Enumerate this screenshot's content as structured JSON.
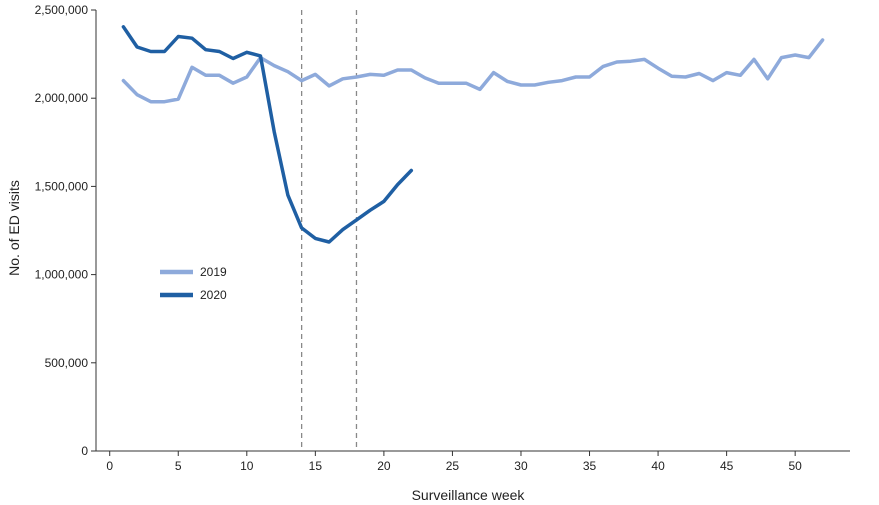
{
  "chart_data": {
    "type": "line",
    "xlabel": "Surveillance week",
    "ylabel": "No. of ED visits",
    "xlim": [
      -1,
      54
    ],
    "ylim": [
      0,
      2500000
    ],
    "x_ticks": [
      0,
      5,
      10,
      15,
      20,
      25,
      30,
      35,
      40,
      45,
      50
    ],
    "x_tick_labels": [
      "0",
      "5",
      "10",
      "15",
      "20",
      "25",
      "30",
      "35",
      "40",
      "45",
      "50"
    ],
    "y_ticks": [
      0,
      500000,
      1000000,
      1500000,
      2000000,
      2500000
    ],
    "y_tick_labels": [
      "0",
      "500,000",
      "1,000,000",
      "1,500,000",
      "2,000,000",
      "2,500,000"
    ],
    "reference_lines_x": [
      14,
      18
    ],
    "legend_position": "left-middle",
    "grid": false,
    "series": [
      {
        "name": "2019",
        "color": "#8eaadb",
        "x": [
          1,
          2,
          3,
          4,
          5,
          6,
          7,
          8,
          9,
          10,
          11,
          12,
          13,
          14,
          15,
          16,
          17,
          18,
          19,
          20,
          21,
          22,
          23,
          24,
          25,
          26,
          27,
          28,
          29,
          30,
          31,
          32,
          33,
          34,
          35,
          36,
          37,
          38,
          39,
          40,
          41,
          42,
          43,
          44,
          45,
          46,
          47,
          48,
          49,
          50,
          51,
          52
        ],
        "values": [
          2100000,
          2020000,
          1980000,
          1980000,
          1995000,
          2175000,
          2130000,
          2130000,
          2085000,
          2120000,
          2230000,
          2185000,
          2150000,
          2100000,
          2135000,
          2070000,
          2110000,
          2120000,
          2135000,
          2130000,
          2160000,
          2160000,
          2115000,
          2085000,
          2085000,
          2085000,
          2050000,
          2145000,
          2095000,
          2075000,
          2075000,
          2090000,
          2100000,
          2120000,
          2120000,
          2180000,
          2205000,
          2210000,
          2220000,
          2170000,
          2125000,
          2120000,
          2140000,
          2100000,
          2145000,
          2130000,
          2220000,
          2110000,
          2230000,
          2245000,
          2230000,
          2330000
        ]
      },
      {
        "name": "2020",
        "color": "#1f5fa3",
        "x": [
          1,
          2,
          3,
          4,
          5,
          6,
          7,
          8,
          9,
          10,
          11,
          12,
          13,
          14,
          15,
          16,
          17,
          18,
          19,
          20,
          21,
          22
        ],
        "values": [
          2405000,
          2290000,
          2265000,
          2265000,
          2350000,
          2340000,
          2275000,
          2265000,
          2225000,
          2260000,
          2240000,
          1810000,
          1450000,
          1265000,
          1205000,
          1185000,
          1255000,
          1310000,
          1365000,
          1415000,
          1510000,
          1590000
        ]
      }
    ]
  }
}
